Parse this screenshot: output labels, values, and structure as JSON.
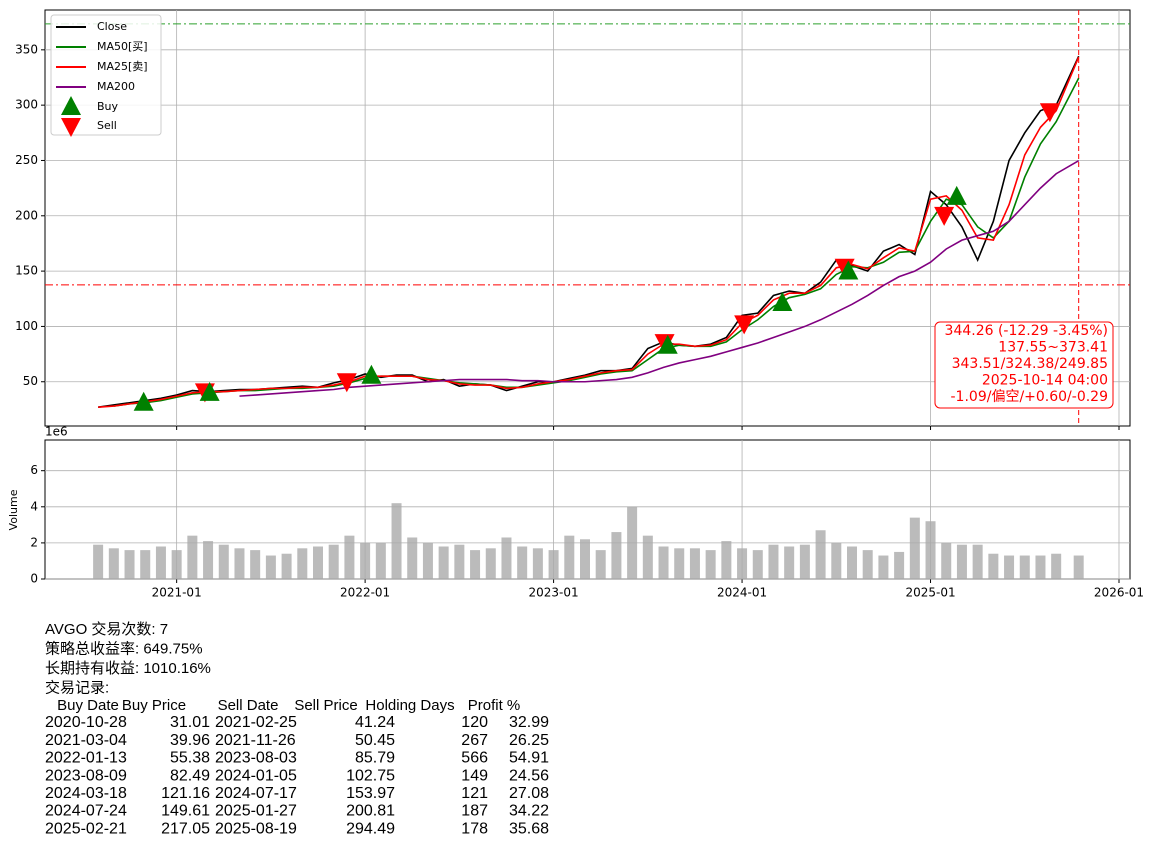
{
  "chart_data": [
    {
      "type": "line",
      "grid": true,
      "legend": "upper left",
      "x": [
        "2020-08",
        "2020-09",
        "2020-10",
        "2020-11",
        "2020-12",
        "2021-01",
        "2021-02",
        "2021-03",
        "2021-04",
        "2021-05",
        "2021-06",
        "2021-07",
        "2021-08",
        "2021-09",
        "2021-10",
        "2021-11",
        "2021-12",
        "2022-01",
        "2022-02",
        "2022-03",
        "2022-04",
        "2022-05",
        "2022-06",
        "2022-07",
        "2022-08",
        "2022-09",
        "2022-10",
        "2022-11",
        "2022-12",
        "2023-01",
        "2023-02",
        "2023-03",
        "2023-04",
        "2023-05",
        "2023-06",
        "2023-07",
        "2023-08",
        "2023-09",
        "2023-10",
        "2023-11",
        "2023-12",
        "2024-01",
        "2024-02",
        "2024-03",
        "2024-04",
        "2024-05",
        "2024-06",
        "2024-07",
        "2024-08",
        "2024-09",
        "2024-10",
        "2024-11",
        "2024-12",
        "2025-01",
        "2025-02",
        "2025-03",
        "2025-04",
        "2025-05",
        "2025-06",
        "2025-07",
        "2025-08",
        "2025-09",
        "2025-10-14"
      ],
      "series": [
        {
          "name": "Close",
          "color": "#000000",
          "values": [
            27,
            29,
            31,
            33,
            35,
            38,
            42,
            41,
            42,
            43,
            43,
            44,
            45,
            46,
            45,
            49,
            52,
            57,
            54,
            56,
            56,
            50,
            52,
            46,
            48,
            47,
            42,
            46,
            50,
            50,
            53,
            56,
            60,
            60,
            62,
            80,
            86,
            83,
            82,
            84,
            90,
            110,
            112,
            128,
            132,
            130,
            140,
            160,
            155,
            150,
            168,
            174,
            165,
            222,
            210,
            190,
            160,
            195,
            250,
            275,
            295,
            300,
            344.26
          ]
        },
        {
          "name": "MA50[买]",
          "color": "#008000",
          "values": [
            null,
            28,
            30,
            31,
            33,
            36,
            39,
            40,
            41,
            42,
            42,
            43,
            44,
            44,
            45,
            46,
            49,
            53,
            55,
            55,
            55,
            53,
            51,
            49,
            48,
            47,
            45,
            45,
            47,
            49,
            51,
            54,
            57,
            59,
            60,
            70,
            80,
            83,
            82,
            82,
            86,
            97,
            106,
            118,
            126,
            129,
            134,
            147,
            154,
            153,
            158,
            167,
            168,
            195,
            215,
            210,
            190,
            180,
            195,
            235,
            265,
            285,
            324.38
          ]
        },
        {
          "name": "MA25[卖]",
          "color": "#ff0000",
          "values": [
            27,
            28,
            30,
            32,
            34,
            37,
            40,
            41,
            41,
            42,
            43,
            44,
            44,
            45,
            45,
            47,
            50,
            55,
            55,
            55,
            55,
            52,
            51,
            48,
            47,
            47,
            44,
            45,
            48,
            50,
            52,
            55,
            58,
            60,
            61,
            75,
            84,
            84,
            82,
            83,
            88,
            103,
            110,
            124,
            130,
            130,
            137,
            153,
            156,
            152,
            162,
            171,
            168,
            215,
            218,
            205,
            180,
            178,
            210,
            255,
            280,
            295,
            343.51
          ]
        },
        {
          "name": "MA200",
          "color": "#800080",
          "values": [
            null,
            null,
            null,
            null,
            null,
            null,
            null,
            null,
            null,
            37,
            38,
            39,
            40,
            41,
            42,
            43,
            45,
            46,
            47,
            48,
            49,
            50,
            51,
            52,
            52,
            52,
            52,
            51,
            51,
            50,
            50,
            50,
            51,
            52,
            54,
            58,
            63,
            67,
            70,
            73,
            77,
            81,
            85,
            90,
            95,
            100,
            106,
            113,
            120,
            128,
            137,
            145,
            150,
            158,
            170,
            178,
            182,
            186,
            195,
            210,
            225,
            238,
            249.85
          ]
        }
      ],
      "markers": [
        {
          "name": "Buy",
          "color": "#008000"
        },
        {
          "name": "Sell",
          "color": "#ff0000"
        }
      ],
      "hlines": [
        {
          "value": 373.41,
          "color": "#2ca02c"
        },
        {
          "value": 137.55,
          "color": "#ff0000"
        }
      ],
      "vline": "2025-10-14",
      "annotation": {
        "color": "#ff0000",
        "lines": [
          "344.26 (-12.29 -3.45%)",
          "137.55~373.41",
          "343.51/324.38/249.85",
          "2025-10-14 04:00",
          "-1.09/偏空/+0.60/-0.29"
        ]
      },
      "xlim": [
        "2020-05",
        "2026-01"
      ],
      "ylim": [
        10,
        386
      ],
      "yticks": [
        50,
        100,
        150,
        200,
        250,
        300,
        350
      ]
    },
    {
      "type": "bar",
      "grid": true,
      "color": "#aaaaaa",
      "ylabel": "Volume",
      "offset_label": "1e6",
      "x": [
        "2020-08",
        "2020-09",
        "2020-10",
        "2020-11",
        "2020-12",
        "2021-01",
        "2021-02",
        "2021-03",
        "2021-04",
        "2021-05",
        "2021-06",
        "2021-07",
        "2021-08",
        "2021-09",
        "2021-10",
        "2021-11",
        "2021-12",
        "2022-01",
        "2022-02",
        "2022-03",
        "2022-04",
        "2022-05",
        "2022-06",
        "2022-07",
        "2022-08",
        "2022-09",
        "2022-10",
        "2022-11",
        "2022-12",
        "2023-01",
        "2023-02",
        "2023-03",
        "2023-04",
        "2023-05",
        "2023-06",
        "2023-07",
        "2023-08",
        "2023-09",
        "2023-10",
        "2023-11",
        "2023-12",
        "2024-01",
        "2024-02",
        "2024-03",
        "2024-04",
        "2024-05",
        "2024-06",
        "2024-07",
        "2024-08",
        "2024-09",
        "2024-10",
        "2024-11",
        "2024-12",
        "2025-01",
        "2025-02",
        "2025-03",
        "2025-04",
        "2025-05",
        "2025-06",
        "2025-07",
        "2025-08",
        "2025-09",
        "2025-10-14"
      ],
      "values": [
        1.9,
        1.7,
        1.6,
        1.6,
        1.8,
        1.6,
        2.4,
        2.1,
        1.9,
        1.7,
        1.6,
        1.3,
        1.4,
        1.7,
        1.8,
        1.9,
        2.4,
        2.0,
        2.0,
        4.2,
        2.3,
        2.0,
        1.8,
        1.9,
        1.6,
        1.7,
        2.3,
        1.8,
        1.7,
        1.6,
        2.4,
        2.2,
        1.6,
        2.6,
        4.0,
        2.4,
        1.8,
        1.7,
        1.7,
        1.6,
        2.1,
        1.7,
        1.6,
        1.9,
        1.8,
        1.9,
        2.7,
        2.0,
        1.8,
        1.6,
        1.3,
        1.5,
        3.4,
        3.2,
        2.0,
        1.9,
        1.9,
        1.4,
        1.3,
        1.3,
        1.3,
        1.4,
        1.3
      ],
      "xlim": [
        "2020-05",
        "2026-01"
      ],
      "ylim": [
        0,
        7.7
      ],
      "yticks": [
        0,
        2,
        4,
        6
      ],
      "xticks": [
        "2021-01",
        "2022-01",
        "2023-01",
        "2024-01",
        "2025-01",
        "2026-01"
      ]
    }
  ],
  "summary": [
    "AVGO 交易次数: 7",
    "策略总收益率: 649.75%",
    "长期持有收益: 1010.16%",
    "交易记录:"
  ],
  "trades": {
    "columns": [
      "Buy Date",
      "Buy Price",
      "Sell Date",
      "Sell Price",
      "Holding Days",
      "Profit %"
    ],
    "rows": [
      [
        "2020-10-28",
        31.01,
        "2021-02-25",
        41.24,
        120,
        32.99
      ],
      [
        "2021-03-04",
        39.96,
        "2021-11-26",
        50.45,
        267,
        26.25
      ],
      [
        "2022-01-13",
        55.38,
        "2023-08-03",
        85.79,
        566,
        54.91
      ],
      [
        "2023-08-09",
        82.49,
        "2024-01-05",
        102.75,
        149,
        24.56
      ],
      [
        "2024-03-18",
        121.16,
        "2024-07-17",
        153.97,
        121,
        27.08
      ],
      [
        "2024-07-24",
        149.61,
        "2025-01-27",
        200.81,
        187,
        34.22
      ],
      [
        "2025-02-21",
        217.05,
        "2025-08-19",
        294.49,
        178,
        35.68
      ]
    ]
  }
}
